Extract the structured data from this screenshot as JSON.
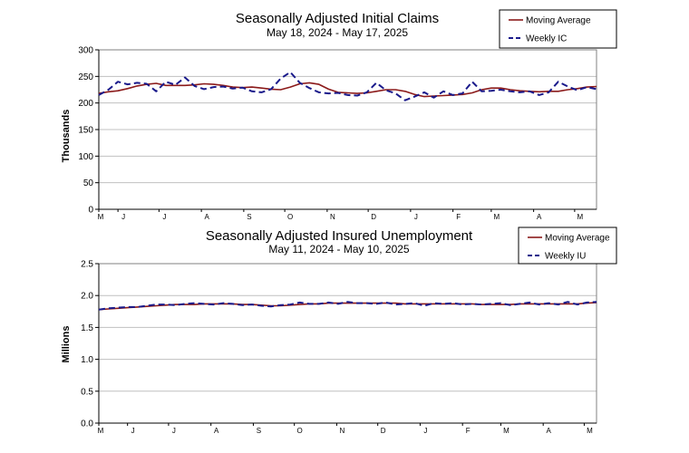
{
  "chart_data": [
    {
      "type": "line",
      "title": "Seasonally Adjusted Initial Claims",
      "subtitle": "May 18, 2024 - May 17, 2025",
      "xlabel": "",
      "ylabel": "Thousands",
      "ylim": [
        0,
        300
      ],
      "yticks": [
        "0",
        "50",
        "100",
        "150",
        "200",
        "250",
        "300"
      ],
      "ytick_values": [
        0,
        50,
        100,
        150,
        200,
        250,
        300
      ],
      "month_labels": [
        "M",
        "J",
        "J",
        "A",
        "S",
        "O",
        "N",
        "D",
        "J",
        "F",
        "M",
        "A",
        "M"
      ],
      "grid": true,
      "legend_position": "top-right",
      "x": [
        "2024-05-18",
        "2024-05-25",
        "2024-06-01",
        "2024-06-08",
        "2024-06-15",
        "2024-06-22",
        "2024-06-29",
        "2024-07-06",
        "2024-07-13",
        "2024-07-20",
        "2024-07-27",
        "2024-08-03",
        "2024-08-10",
        "2024-08-17",
        "2024-08-24",
        "2024-08-31",
        "2024-09-07",
        "2024-09-14",
        "2024-09-21",
        "2024-09-28",
        "2024-10-05",
        "2024-10-12",
        "2024-10-19",
        "2024-10-26",
        "2024-11-02",
        "2024-11-09",
        "2024-11-16",
        "2024-11-23",
        "2024-11-30",
        "2024-12-07",
        "2024-12-14",
        "2024-12-21",
        "2024-12-28",
        "2025-01-04",
        "2025-01-11",
        "2025-01-18",
        "2025-01-25",
        "2025-02-01",
        "2025-02-08",
        "2025-02-15",
        "2025-02-22",
        "2025-03-01",
        "2025-03-08",
        "2025-03-15",
        "2025-03-22",
        "2025-03-29",
        "2025-04-05",
        "2025-04-12",
        "2025-04-19",
        "2025-04-26",
        "2025-05-03",
        "2025-05-10",
        "2025-05-17"
      ],
      "series": [
        {
          "name": "Moving Average",
          "color": "#8b1a1a",
          "style": "solid",
          "values": [
            218,
            221,
            223,
            227,
            232,
            235,
            237,
            233,
            233,
            233,
            234,
            236,
            235,
            233,
            230,
            229,
            230,
            228,
            226,
            225,
            230,
            236,
            238,
            235,
            226,
            220,
            219,
            218,
            219,
            222,
            225,
            225,
            222,
            216,
            212,
            213,
            214,
            215,
            216,
            219,
            225,
            228,
            228,
            225,
            223,
            222,
            221,
            222,
            222,
            225,
            227,
            230,
            231
          ]
        },
        {
          "name": "Weekly IC",
          "color": "#1a1a8b",
          "style": "dashed",
          "values": [
            215,
            225,
            240,
            235,
            238,
            236,
            222,
            240,
            234,
            248,
            232,
            226,
            230,
            231,
            227,
            229,
            222,
            220,
            226,
            246,
            258,
            238,
            228,
            220,
            218,
            219,
            215,
            214,
            220,
            238,
            224,
            218,
            205,
            212,
            220,
            210,
            222,
            215,
            218,
            240,
            222,
            223,
            225,
            222,
            220,
            222,
            215,
            220,
            240,
            231,
            224,
            230,
            226
          ]
        }
      ]
    },
    {
      "type": "line",
      "title": "Seasonally Adjusted Insured Unemployment",
      "subtitle": "May 11, 2024 - May 10, 2025",
      "xlabel": "",
      "ylabel": "Millions",
      "ylim": [
        0,
        2.5
      ],
      "yticks": [
        "0.0",
        "0.5",
        "1.0",
        "1.5",
        "2.0",
        "2.5"
      ],
      "ytick_values": [
        0,
        0.5,
        1.0,
        1.5,
        2.0,
        2.5
      ],
      "month_labels": [
        "M",
        "J",
        "J",
        "A",
        "S",
        "O",
        "N",
        "D",
        "J",
        "F",
        "M",
        "A",
        "M"
      ],
      "grid": true,
      "legend_position": "top-right",
      "x": [
        "2024-05-11",
        "2024-05-18",
        "2024-05-25",
        "2024-06-01",
        "2024-06-08",
        "2024-06-15",
        "2024-06-22",
        "2024-06-29",
        "2024-07-06",
        "2024-07-13",
        "2024-07-20",
        "2024-07-27",
        "2024-08-03",
        "2024-08-10",
        "2024-08-17",
        "2024-08-24",
        "2024-08-31",
        "2024-09-07",
        "2024-09-14",
        "2024-09-21",
        "2024-09-28",
        "2024-10-05",
        "2024-10-12",
        "2024-10-19",
        "2024-10-26",
        "2024-11-02",
        "2024-11-09",
        "2024-11-16",
        "2024-11-23",
        "2024-11-30",
        "2024-12-07",
        "2024-12-14",
        "2024-12-21",
        "2024-12-28",
        "2025-01-04",
        "2025-01-11",
        "2025-01-18",
        "2025-01-25",
        "2025-02-01",
        "2025-02-08",
        "2025-02-15",
        "2025-02-22",
        "2025-03-01",
        "2025-03-08",
        "2025-03-15",
        "2025-03-22",
        "2025-03-29",
        "2025-04-05",
        "2025-04-12",
        "2025-04-19",
        "2025-04-26",
        "2025-05-03",
        "2025-05-10"
      ],
      "series": [
        {
          "name": "Moving Average",
          "color": "#8b1a1a",
          "style": "solid",
          "values": [
            1.78,
            1.79,
            1.8,
            1.81,
            1.82,
            1.83,
            1.84,
            1.85,
            1.86,
            1.86,
            1.86,
            1.87,
            1.87,
            1.87,
            1.87,
            1.86,
            1.86,
            1.85,
            1.84,
            1.84,
            1.85,
            1.86,
            1.87,
            1.87,
            1.88,
            1.88,
            1.88,
            1.88,
            1.88,
            1.88,
            1.88,
            1.88,
            1.87,
            1.87,
            1.87,
            1.87,
            1.87,
            1.87,
            1.87,
            1.87,
            1.86,
            1.86,
            1.86,
            1.86,
            1.87,
            1.87,
            1.87,
            1.87,
            1.87,
            1.87,
            1.87,
            1.88,
            1.89
          ]
        },
        {
          "name": "Weekly IU",
          "color": "#1a1a8b",
          "style": "dashed",
          "values": [
            1.78,
            1.8,
            1.81,
            1.82,
            1.82,
            1.84,
            1.86,
            1.86,
            1.85,
            1.87,
            1.88,
            1.87,
            1.86,
            1.88,
            1.87,
            1.85,
            1.86,
            1.84,
            1.83,
            1.85,
            1.86,
            1.89,
            1.87,
            1.87,
            1.89,
            1.87,
            1.9,
            1.88,
            1.88,
            1.87,
            1.89,
            1.86,
            1.87,
            1.88,
            1.84,
            1.88,
            1.87,
            1.88,
            1.86,
            1.87,
            1.86,
            1.87,
            1.88,
            1.85,
            1.87,
            1.89,
            1.86,
            1.88,
            1.86,
            1.9,
            1.86,
            1.89,
            1.9
          ]
        }
      ]
    }
  ]
}
